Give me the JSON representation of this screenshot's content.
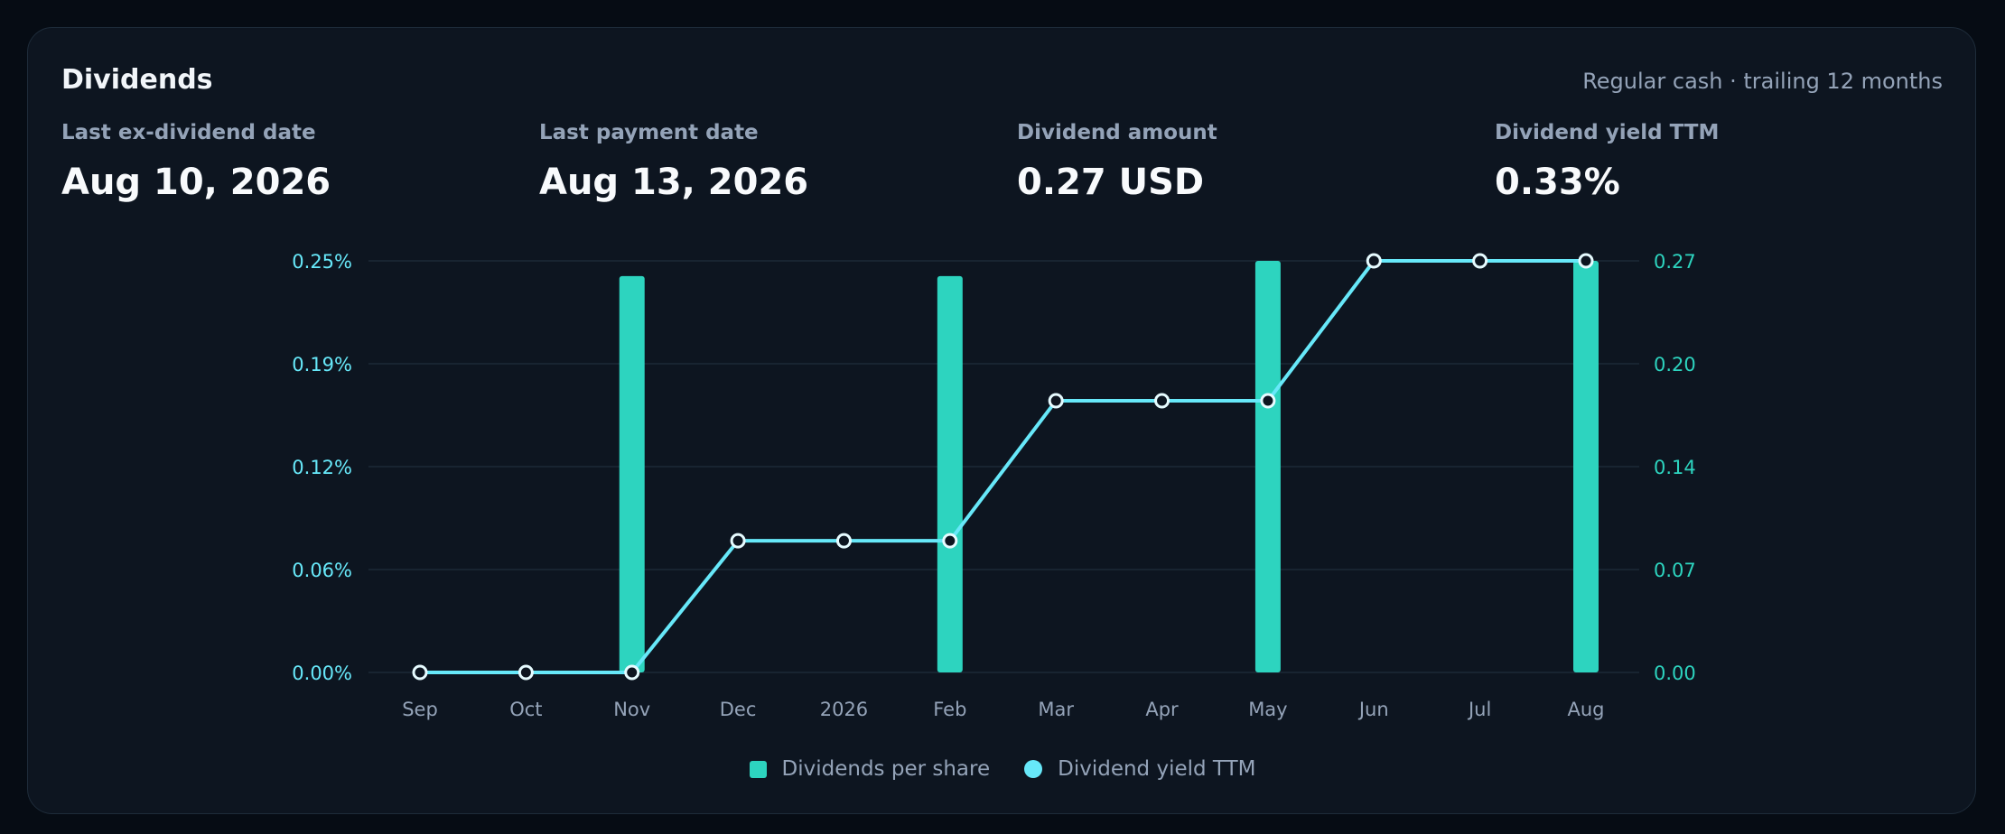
{
  "card": {
    "title": "Dividends",
    "subtitle": "Regular cash · trailing 12 months"
  },
  "stats": [
    {
      "label": "Last ex-dividend date",
      "value": "Aug 10, 2026"
    },
    {
      "label": "Last payment date",
      "value": "Aug 13, 2026"
    },
    {
      "label": "Dividend amount",
      "value": "0.27 USD"
    },
    {
      "label": "Dividend yield TTM",
      "value": "0.33%"
    }
  ],
  "colors": {
    "bar": "#2dd4bf",
    "line": "#67e8f9",
    "left_axis": "#67e8f9",
    "right_axis": "#2dd4bf",
    "grid": "#1c2937",
    "tick": "#94a3b8"
  },
  "chart_data": {
    "type": "bar",
    "categories": [
      "Sep",
      "Oct",
      "Nov",
      "Dec",
      "2026",
      "Feb",
      "Mar",
      "Apr",
      "May",
      "Jun",
      "Jul",
      "Aug"
    ],
    "series": [
      {
        "name": "Dividends per share",
        "type": "bar",
        "axis": "right",
        "values": [
          0,
          0,
          0.26,
          0,
          0,
          0.26,
          0,
          0,
          0.27,
          0,
          0,
          0.27
        ]
      },
      {
        "name": "Dividend yield TTM",
        "type": "line",
        "axis": "left",
        "values": [
          0,
          0,
          0,
          0.08,
          0.08,
          0.08,
          0.165,
          0.165,
          0.165,
          0.25,
          0.25,
          0.25
        ]
      }
    ],
    "y_left_ticks": [
      "0.00%",
      "0.06%",
      "0.12%",
      "0.19%",
      "0.25%"
    ],
    "y_left_lim": [
      0,
      0.25
    ],
    "y_right_ticks": [
      "0.00",
      "0.07",
      "0.14",
      "0.20",
      "0.27"
    ],
    "y_right_lim": [
      0,
      0.27
    ],
    "grid": true,
    "legend": "bottom-center"
  }
}
